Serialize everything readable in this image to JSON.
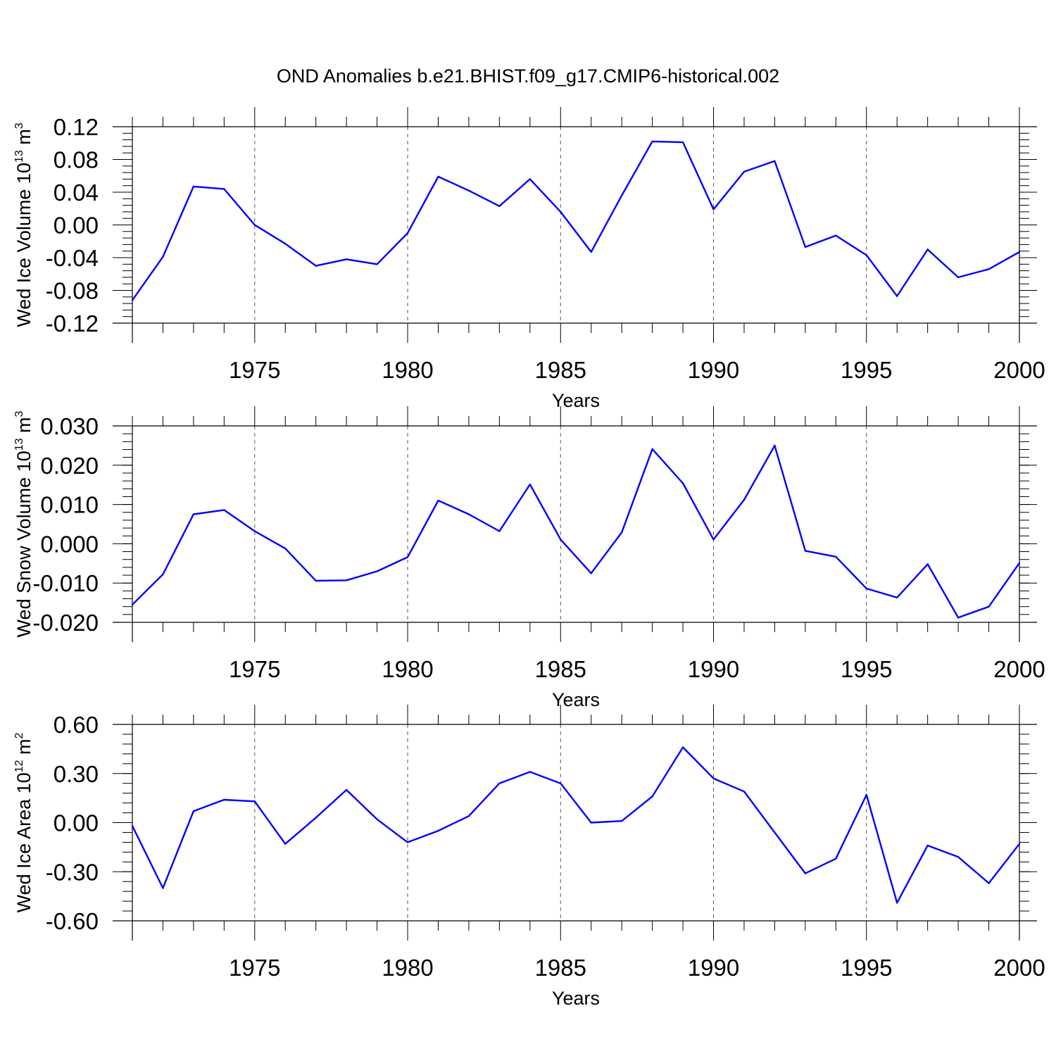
{
  "figure": {
    "title": "OND Anomalies b.e21.BHIST.f09_g17.CMIP6-historical.002",
    "line_color": "#0000ff"
  },
  "chart_data": [
    {
      "type": "line",
      "ylabel": {
        "base": "Wed Ice Volume 10",
        "exp": "13",
        "unit": " m",
        "unit_exp": "3"
      },
      "xlabel": "Years",
      "xlim": [
        1971,
        2000
      ],
      "ylim": [
        -0.12,
        0.12
      ],
      "x_ticks": [
        1975,
        1980,
        1985,
        1990,
        1995,
        2000
      ],
      "y_ticks": [
        0.12,
        0.08,
        0.04,
        0.0,
        -0.04,
        -0.08,
        -0.12
      ],
      "y_tick_labels": [
        "0.12",
        "0.08",
        "0.04",
        "0.00",
        "-0.04",
        "-0.08",
        "-0.12"
      ],
      "grid": "vertical dashed at major x ticks",
      "series": [
        {
          "x": [
            1971,
            1972,
            1973,
            1974,
            1975,
            1976,
            1977,
            1978,
            1979,
            1980,
            1981,
            1982,
            1983,
            1984,
            1985,
            1986,
            1987,
            1988,
            1989,
            1990,
            1991,
            1992,
            1993,
            1994,
            1995,
            1996,
            1997,
            1998,
            1999,
            2000
          ],
          "values": [
            -0.092,
            -0.039,
            0.047,
            0.044,
            0.0,
            -0.023,
            -0.05,
            -0.042,
            -0.048,
            -0.01,
            0.059,
            0.042,
            0.023,
            0.056,
            0.016,
            -0.033,
            0.036,
            0.102,
            0.101,
            0.019,
            0.065,
            0.078,
            -0.027,
            -0.013,
            -0.037,
            -0.087,
            -0.03,
            -0.064,
            -0.054,
            -0.033
          ]
        }
      ]
    },
    {
      "type": "line",
      "ylabel": {
        "base": "Wed Snow Volume 10",
        "exp": "13",
        "unit": " m",
        "unit_exp": "3"
      },
      "xlabel": "Years",
      "xlim": [
        1971,
        2000
      ],
      "ylim": [
        -0.02,
        0.03
      ],
      "x_ticks": [
        1975,
        1980,
        1985,
        1990,
        1995,
        2000
      ],
      "y_ticks": [
        0.03,
        0.02,
        0.01,
        0.0,
        -0.01,
        -0.02
      ],
      "y_tick_labels": [
        "0.030",
        "0.020",
        "0.010",
        "0.000",
        "-0.010",
        "-0.020"
      ],
      "grid": "vertical dashed at major x ticks",
      "series": [
        {
          "x": [
            1971,
            1972,
            1973,
            1974,
            1975,
            1976,
            1977,
            1978,
            1979,
            1980,
            1981,
            1982,
            1983,
            1984,
            1985,
            1986,
            1987,
            1988,
            1989,
            1990,
            1991,
            1992,
            1993,
            1994,
            1995,
            1996,
            1997,
            1998,
            1999,
            2000
          ],
          "values": [
            -0.0155,
            -0.0078,
            0.0075,
            0.0086,
            0.0032,
            -0.0012,
            -0.0094,
            -0.0093,
            -0.007,
            -0.0034,
            0.011,
            0.0075,
            0.0032,
            0.0151,
            0.0011,
            -0.0075,
            0.0029,
            0.0241,
            0.0154,
            0.0011,
            0.0112,
            0.025,
            -0.0018,
            -0.0033,
            -0.0114,
            -0.0137,
            -0.0052,
            -0.0188,
            -0.016,
            -0.0049
          ]
        }
      ]
    },
    {
      "type": "line",
      "ylabel": {
        "base": "Wed Ice Area 10",
        "exp": "12",
        "unit": " m",
        "unit_exp": "2"
      },
      "xlabel": "Years",
      "xlim": [
        1971,
        2000
      ],
      "ylim": [
        -0.6,
        0.6
      ],
      "x_ticks": [
        1975,
        1980,
        1985,
        1990,
        1995,
        2000
      ],
      "y_ticks": [
        0.6,
        0.3,
        0.0,
        -0.3,
        -0.6
      ],
      "y_tick_labels": [
        "0.60",
        "0.30",
        "0.00",
        "-0.30",
        "-0.60"
      ],
      "grid": "vertical dashed at major x ticks",
      "series": [
        {
          "x": [
            1971,
            1972,
            1973,
            1974,
            1975,
            1976,
            1977,
            1978,
            1979,
            1980,
            1981,
            1982,
            1983,
            1984,
            1985,
            1986,
            1987,
            1988,
            1989,
            1990,
            1991,
            1992,
            1993,
            1994,
            1995,
            1996,
            1997,
            1998,
            1999,
            2000
          ],
          "values": [
            -0.02,
            -0.4,
            0.07,
            0.14,
            0.13,
            -0.13,
            0.03,
            0.2,
            0.02,
            -0.12,
            -0.05,
            0.04,
            0.24,
            0.31,
            0.24,
            0.0,
            0.01,
            0.16,
            0.46,
            0.27,
            0.19,
            -0.06,
            -0.31,
            -0.22,
            0.17,
            -0.49,
            -0.14,
            -0.21,
            -0.37,
            -0.13
          ]
        }
      ]
    }
  ]
}
